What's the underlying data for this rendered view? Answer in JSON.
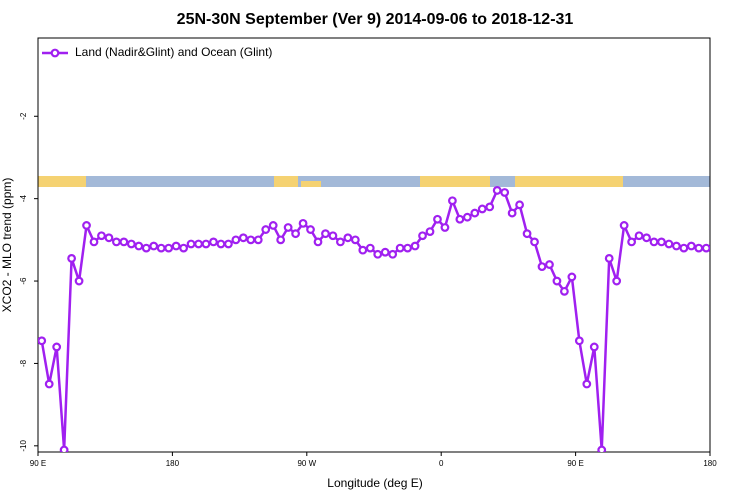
{
  "chart_data": {
    "type": "line",
    "title": "25N-30N September (Ver 9)   2014-09-06 to 2018-12-31",
    "x_label": "Longitude (deg E)",
    "y_label": "XCO2 - MLO trend (ppm)",
    "xlim": [
      90,
      540
    ],
    "ylim": [
      -10.15,
      -0.1
    ],
    "xticks": [
      {
        "value": 90,
        "label": "90 E"
      },
      180,
      {
        "value": 270,
        "label": "90 W"
      },
      {
        "value": 360,
        "label": "0"
      },
      {
        "value": 450,
        "label": "90 E"
      },
      {
        "value": 540,
        "label": "180"
      }
    ],
    "yticks": [
      -10,
      -8,
      -6,
      -4,
      -2
    ],
    "legend": "top-left",
    "x": [
      92.5,
      97.5,
      102.5,
      107.5,
      112.5,
      117.5,
      122.5,
      127.5,
      132.5,
      137.5,
      142.5,
      147.5,
      152.5,
      157.5,
      162.5,
      167.5,
      172.5,
      177.5,
      182.5,
      187.5,
      192.5,
      197.5,
      202.5,
      207.5,
      212.5,
      217.5,
      222.5,
      227.5,
      232.5,
      237.5,
      242.5,
      247.5,
      252.5,
      257.5,
      262.5,
      267.5,
      272.5,
      277.5,
      282.5,
      287.5,
      292.5,
      297.5,
      302.5,
      307.5,
      312.5,
      317.5,
      322.5,
      327.5,
      332.5,
      337.5,
      342.5,
      347.5,
      352.5,
      357.5,
      362.5,
      367.5,
      372.5,
      377.5,
      382.5,
      387.5,
      392.5,
      397.5,
      402.5,
      407.5,
      412.5,
      417.5,
      422.5,
      427.5,
      432.5,
      437.5,
      442.5,
      447.5,
      452.5,
      457.5,
      462.5,
      467.5,
      472.5,
      477.5,
      482.5,
      487.5,
      492.5,
      497.5,
      502.5,
      507.5,
      512.5,
      517.5,
      522.5,
      527.5,
      532.5,
      537.5
    ],
    "series": [
      {
        "name": "Land (Nadir&Glint) and Ocean (Glint)",
        "color": "#a020f0",
        "values": [
          -7.45,
          -8.5,
          -7.6,
          -10.1,
          -5.45,
          -6.0,
          -4.65,
          -5.05,
          -4.9,
          -4.95,
          -5.05,
          -5.05,
          -5.1,
          -5.15,
          -5.2,
          -5.15,
          -5.2,
          -5.2,
          -5.15,
          -5.2,
          -5.1,
          -5.1,
          -5.1,
          -5.05,
          -5.1,
          -5.1,
          -5.0,
          -4.95,
          -5.0,
          -5.0,
          -4.75,
          -4.65,
          -5.0,
          -4.7,
          -4.85,
          -4.6,
          -4.75,
          -5.05,
          -4.85,
          -4.9,
          -5.05,
          -4.95,
          -5.0,
          -5.25,
          -5.2,
          -5.35,
          -5.3,
          -5.35,
          -5.2,
          -5.2,
          -5.15,
          -4.9,
          -4.8,
          -4.5,
          -4.7,
          -4.05,
          -4.5,
          -4.45,
          -4.35,
          -4.25,
          -4.2,
          -3.8,
          -3.85,
          -4.35,
          -4.15,
          -4.85,
          -5.05,
          -5.65,
          -5.6,
          -6.0,
          -6.25,
          -5.9,
          -7.45,
          -8.5,
          -7.6,
          -10.1,
          -5.45,
          -6.0,
          -4.65,
          -5.05,
          -4.9,
          -4.95,
          -5.05,
          -5.05,
          -5.1,
          -5.15,
          -5.2,
          -5.15,
          -5.2,
          -5.2
        ]
      }
    ]
  }
}
